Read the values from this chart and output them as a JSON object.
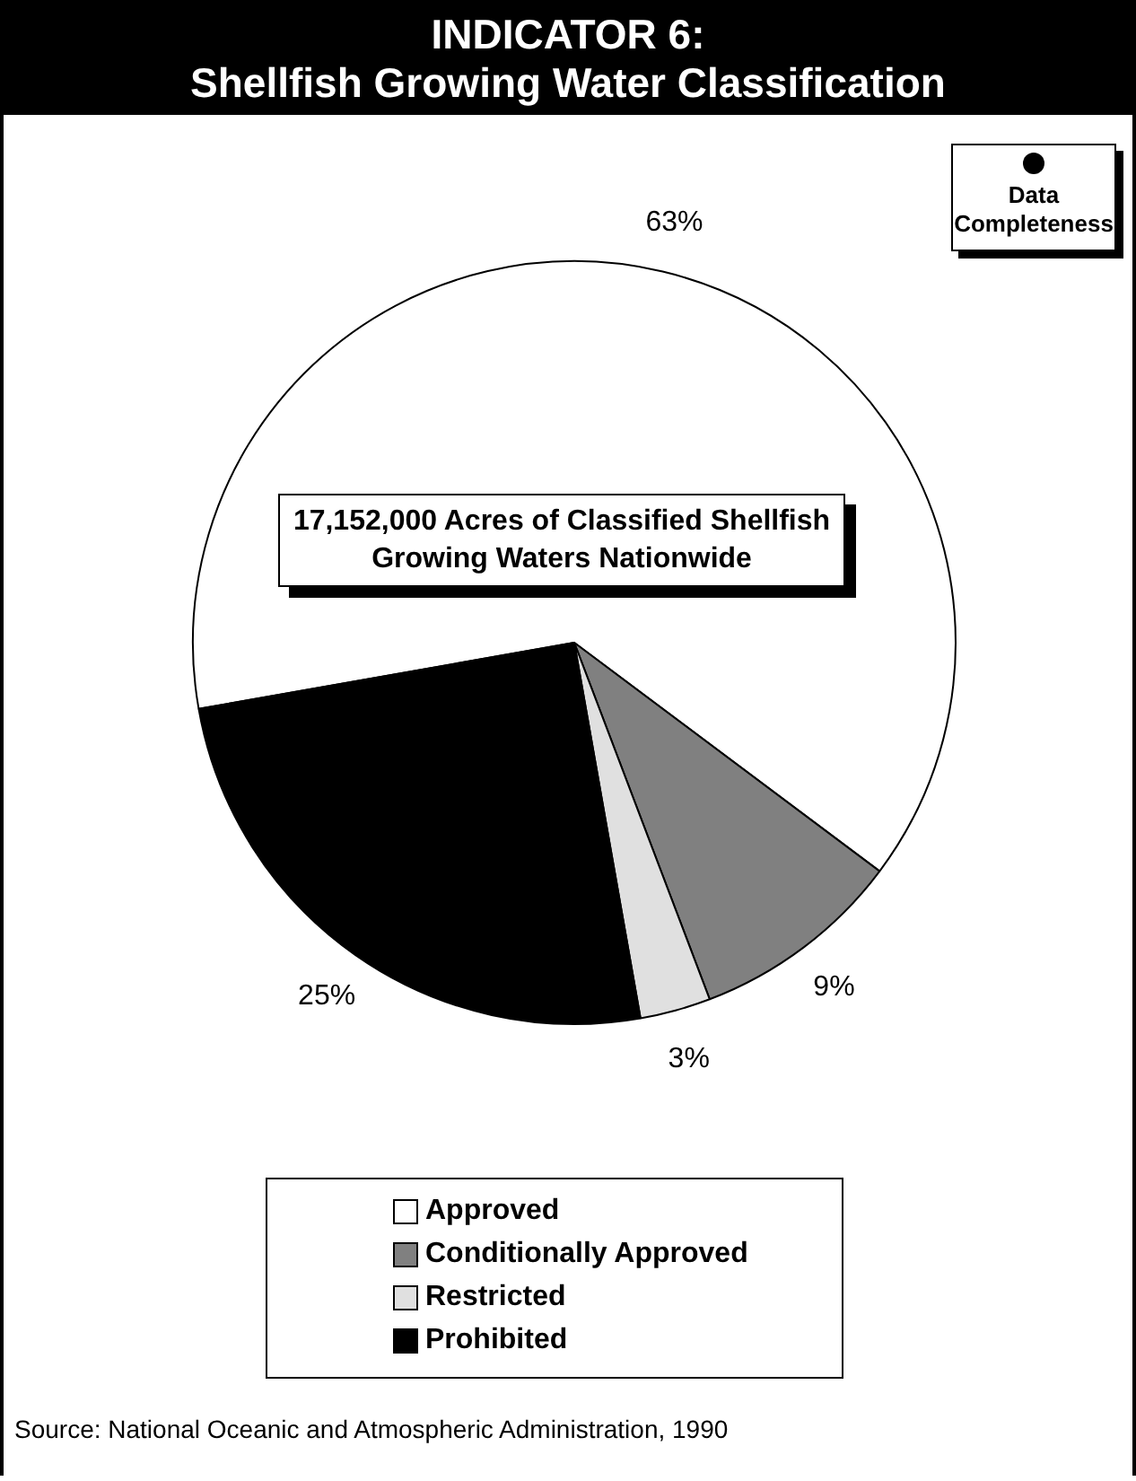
{
  "chart_data": {
    "type": "pie",
    "title": "INDICATOR 6:",
    "subtitle": "Shellfish Growing Water Classification",
    "categories": [
      "Approved",
      "Conditionally Approved",
      "Restricted",
      "Prohibited"
    ],
    "values": [
      63,
      9,
      3,
      25
    ],
    "colors": [
      "#ffffff",
      "#808080",
      "#e0e0e0",
      "#000000"
    ],
    "value_labels": [
      "63%",
      "9%",
      "3%",
      "25%"
    ],
    "legend": "bottom",
    "annotations": [
      "Data Completeness",
      "17,152,000 Acres of Classified Shellfish Growing Waters Nationwide",
      "Source: National Oceanic and Atmospheric Administration, 1990"
    ]
  }
}
